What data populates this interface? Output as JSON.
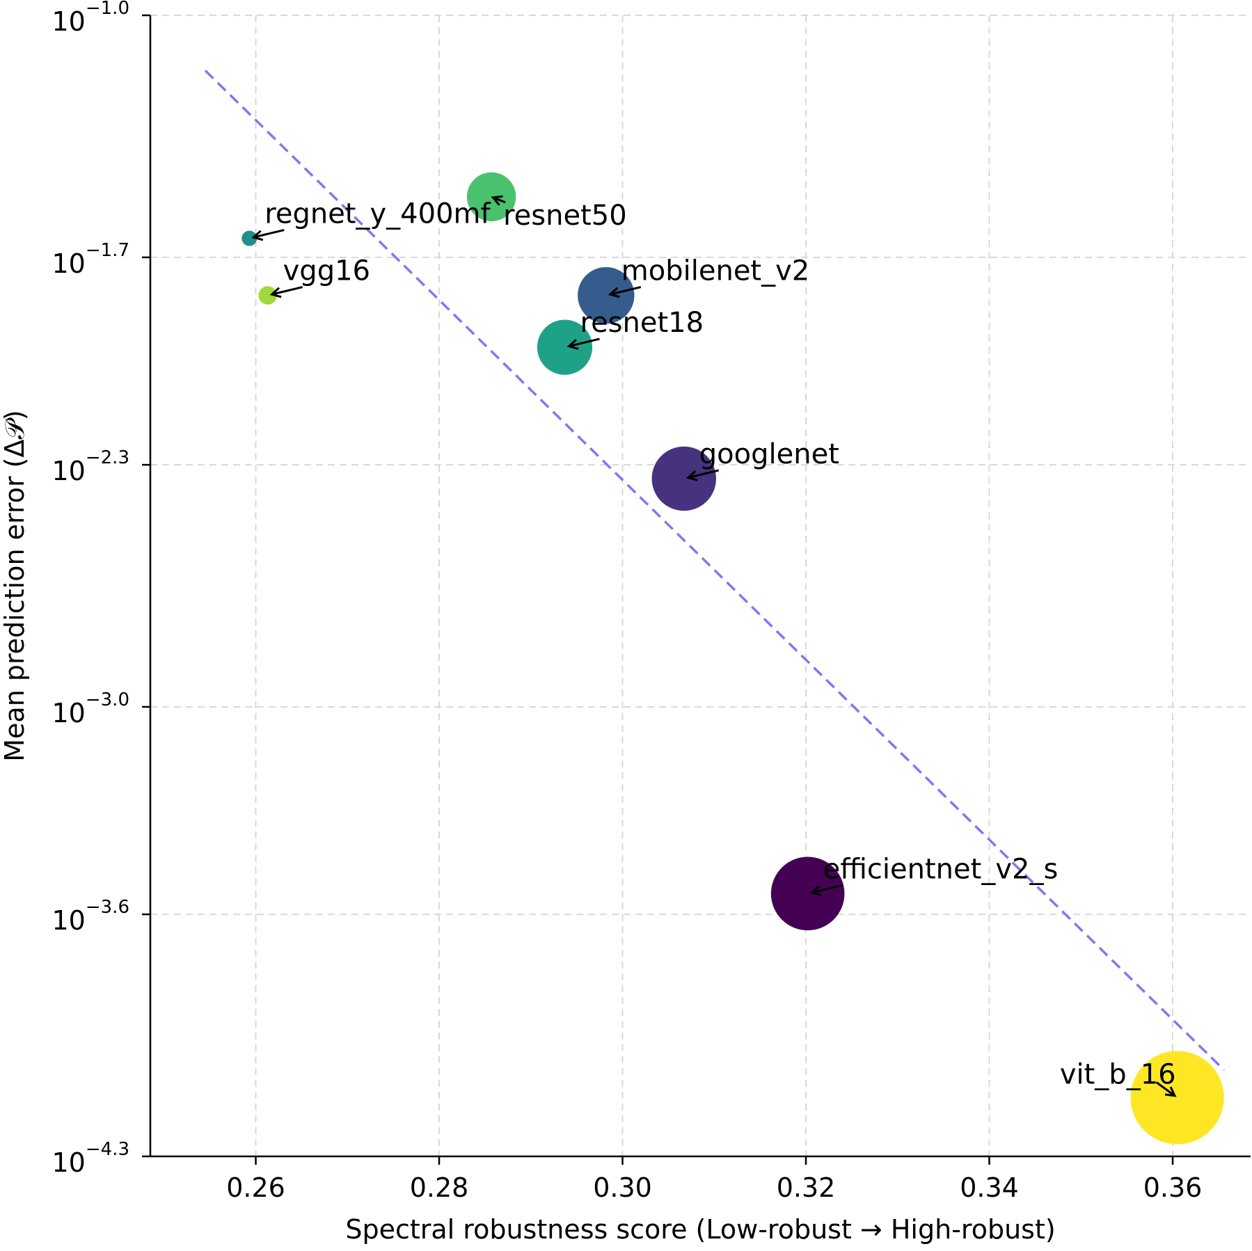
{
  "chart_data": {
    "type": "scatter",
    "title": "",
    "xlabel": "Spectral robustness score (Low-robust → High-robust)",
    "ylabel": "Mean prediction error (Δ𝒫)",
    "xlim": [
      0.2485,
      0.3685
    ],
    "ylim_log10": [
      -4.3,
      -1.0
    ],
    "yscale": "log",
    "grid": true,
    "x_ticks": [
      {
        "value": 0.26,
        "label": "0.26"
      },
      {
        "value": 0.28,
        "label": "0.28"
      },
      {
        "value": 0.3,
        "label": "0.30"
      },
      {
        "value": 0.32,
        "label": "0.32"
      },
      {
        "value": 0.34,
        "label": "0.34"
      },
      {
        "value": 0.36,
        "label": "0.36"
      }
    ],
    "y_ticks": [
      {
        "log10": -1.0,
        "base": "10",
        "exp": "−1.0"
      },
      {
        "log10": -1.7,
        "base": "10",
        "exp": "−1.7"
      },
      {
        "log10": -2.3,
        "base": "10",
        "exp": "−2.3"
      },
      {
        "log10": -3.0,
        "base": "10",
        "exp": "−3.0"
      },
      {
        "log10": -3.6,
        "base": "10",
        "exp": "−3.6"
      },
      {
        "log10": -4.3,
        "base": "10",
        "exp": "−4.3"
      }
    ],
    "points": [
      {
        "label": "regnet_y_400mf",
        "x": 0.2593,
        "log10y": -1.645,
        "size_rel": 1.0,
        "color": "#21908d",
        "label_anchor": "upper-right"
      },
      {
        "label": "resnet50",
        "x": 0.2857,
        "log10y": -1.525,
        "size_rel": 3.2,
        "color": "#4ac16d",
        "label_anchor": "lower-right"
      },
      {
        "label": "vgg16",
        "x": 0.2613,
        "log10y": -1.81,
        "size_rel": 1.2,
        "color": "#9fda3a",
        "label_anchor": "upper-right"
      },
      {
        "label": "mobilenet_v2",
        "x": 0.2982,
        "log10y": -1.81,
        "size_rel": 3.7,
        "color": "#365c8d",
        "label_anchor": "upper-right"
      },
      {
        "label": "resnet18",
        "x": 0.2937,
        "log10y": -1.96,
        "size_rel": 3.6,
        "color": "#1fa187",
        "label_anchor": "upper-right"
      },
      {
        "label": "googlenet",
        "x": 0.3067,
        "log10y": -2.34,
        "size_rel": 4.2,
        "color": "#46327e",
        "label_anchor": "upper-right"
      },
      {
        "label": "efficientnet_v2_s",
        "x": 0.3202,
        "log10y": -3.54,
        "size_rel": 4.8,
        "color": "#440154",
        "label_anchor": "upper-right"
      },
      {
        "label": "vit_b_16",
        "x": 0.3605,
        "log10y": -4.13,
        "size_rel": 6.1,
        "color": "#fde725",
        "label_anchor": "upper-left"
      }
    ],
    "trend_line": {
      "style": "dashed",
      "color": "#7b7bf0",
      "start": {
        "x": 0.2545,
        "log10y": -1.16
      },
      "end": {
        "x": 0.3656,
        "log10y": -4.05
      }
    }
  }
}
